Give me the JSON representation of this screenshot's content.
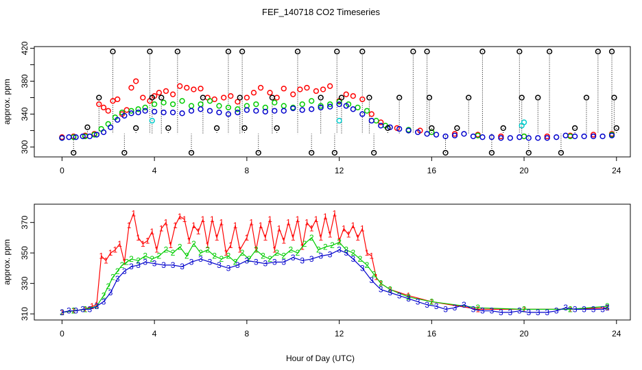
{
  "title": "FEF_140718  CO2 Timeseries",
  "xlabel": "Hour of Day (UTC)",
  "colors": {
    "s1": "#ff0000",
    "s2": "#00cc00",
    "s3": "#0000cc",
    "cyan": "#00cccc",
    "axis": "#000000"
  },
  "chart_data": [
    {
      "type": "scatter",
      "ylabel": "approx. ppm",
      "xlim": [
        -1.2,
        24.6
      ],
      "ylim": [
        288,
        422
      ],
      "xticks": [
        0,
        4,
        8,
        12,
        16,
        20,
        24
      ],
      "yticks": [
        300,
        340,
        380,
        420
      ],
      "y_minor_ticks": [
        320,
        360,
        400
      ],
      "grid": false,
      "series": [
        {
          "marker": "circle",
          "color": "#ff0000",
          "x": [
            0,
            0.5,
            1,
            1.4,
            1.6,
            1.8,
            2,
            2.2,
            2.4,
            2.6,
            2.8,
            3,
            3.2,
            3.5,
            3.8,
            4,
            4.2,
            4.5,
            4.8,
            5.1,
            5.4,
            5.7,
            6,
            6.3,
            6.6,
            7,
            7.3,
            7.6,
            8,
            8.3,
            8.6,
            9,
            9.3,
            9.6,
            10,
            10.3,
            10.6,
            11,
            11.3,
            11.6,
            12,
            12.3,
            12.6,
            13,
            13.4,
            13.8,
            14.5,
            15.5,
            16,
            17,
            18,
            19,
            20,
            21,
            22,
            23,
            23.8
          ],
          "y": [
            312,
            313,
            314,
            316,
            352,
            348,
            344,
            356,
            358,
            340,
            345,
            372,
            380,
            360,
            356,
            362,
            366,
            368,
            364,
            374,
            372,
            370,
            371,
            360,
            358,
            360,
            362,
            355,
            360,
            366,
            372,
            366,
            360,
            371,
            364,
            370,
            372,
            368,
            370,
            374,
            356,
            364,
            362,
            358,
            340,
            330,
            323,
            320,
            318,
            316,
            315,
            313,
            313,
            313,
            314,
            315,
            316
          ]
        },
        {
          "marker": "circle",
          "color": "#00cc00",
          "x": [
            0,
            0.5,
            1,
            1.4,
            1.7,
            2,
            2.3,
            2.6,
            3,
            3.3,
            3.6,
            4,
            4.4,
            4.8,
            5.2,
            5.6,
            6,
            6.4,
            6.8,
            7.2,
            7.6,
            8,
            8.4,
            8.8,
            9.2,
            9.6,
            10,
            10.4,
            10.8,
            11.2,
            11.6,
            12,
            12.4,
            12.8,
            13.2,
            13.6,
            14,
            15,
            16,
            18,
            20,
            22,
            23.8
          ],
          "y": [
            311,
            312,
            313,
            315,
            322,
            328,
            336,
            342,
            344,
            346,
            348,
            352,
            354,
            352,
            356,
            350,
            352,
            356,
            350,
            348,
            346,
            350,
            352,
            348,
            354,
            350,
            348,
            352,
            356,
            350,
            352,
            355,
            352,
            348,
            344,
            332,
            326,
            321,
            318,
            314,
            313,
            313,
            315
          ]
        },
        {
          "marker": "circle",
          "color": "#0000cc",
          "x": [
            0,
            0.3,
            0.6,
            0.9,
            1.2,
            1.5,
            1.8,
            2.1,
            2.4,
            2.7,
            3,
            3.3,
            3.6,
            4,
            4.4,
            4.8,
            5.2,
            5.6,
            6,
            6.4,
            6.8,
            7.2,
            7.6,
            8,
            8.4,
            8.8,
            9.2,
            9.6,
            10,
            10.4,
            10.8,
            11.2,
            11.6,
            12,
            12.3,
            12.6,
            13,
            13.4,
            13.8,
            14.2,
            14.6,
            15,
            15.4,
            15.8,
            16.2,
            16.6,
            17,
            17.4,
            17.8,
            18.2,
            18.6,
            19,
            19.4,
            19.8,
            20.2,
            20.6,
            21,
            21.4,
            21.8,
            22.2,
            22.6,
            23,
            23.4,
            23.8
          ],
          "y": [
            311,
            312,
            312,
            313,
            313,
            315,
            318,
            324,
            333,
            338,
            341,
            342,
            344,
            343,
            342,
            342,
            341,
            344,
            346,
            344,
            342,
            340,
            342,
            345,
            344,
            343,
            344,
            344,
            347,
            345,
            346,
            348,
            349,
            352,
            350,
            346,
            340,
            332,
            326,
            324,
            322,
            320,
            318,
            316,
            315,
            313,
            314,
            316,
            313,
            312,
            312,
            311,
            311,
            312,
            311,
            311,
            311,
            312,
            314,
            313,
            313,
            313,
            313,
            314
          ]
        },
        {
          "marker": "circle",
          "color": "#000000",
          "x": [
            0.5,
            1.1,
            1.6,
            2.7,
            2.2,
            3.2,
            3.8,
            3.9,
            4.3,
            4.6,
            5,
            5.6,
            6.1,
            6.7,
            7.2,
            7.7,
            7.8,
            7.9,
            8.5,
            9.1,
            9.3,
            10.2,
            10.8,
            11.2,
            11.8,
            11.9,
            12.1,
            13,
            13.3,
            13.5,
            14.1,
            14.6,
            15.2,
            15.8,
            15.9,
            16.0,
            16.6,
            17.1,
            17.6,
            18.2,
            18.6,
            19.1,
            19.8,
            19.9,
            20.2,
            20.6,
            21.1,
            21.6,
            22.2,
            22.7,
            23.2,
            23.8,
            23.9,
            24.0
          ],
          "y": [
            293,
            324,
            360,
            293,
            416,
            323,
            416,
            360,
            360,
            323,
            416,
            293,
            360,
            323,
            416,
            360,
            416,
            323,
            293,
            360,
            323,
            416,
            293,
            360,
            293,
            416,
            360,
            416,
            360,
            293,
            323,
            360,
            416,
            416,
            360,
            323,
            293,
            323,
            360,
            416,
            293,
            323,
            416,
            360,
            293,
            360,
            416,
            293,
            323,
            360,
            416,
            416,
            360,
            323
          ]
        },
        {
          "marker": "circle",
          "color": "#00cccc",
          "x": [
            3.9,
            12.0,
            19.9,
            20.0
          ],
          "y": [
            332,
            332,
            326,
            330
          ]
        }
      ]
    },
    {
      "type": "line",
      "ylabel": "approx. ppm",
      "xlim": [
        -1.2,
        24.6
      ],
      "ylim": [
        306,
        382
      ],
      "xticks": [
        0,
        4,
        8,
        12,
        16,
        20,
        24
      ],
      "yticks": [
        310,
        330,
        350,
        370
      ],
      "grid": false,
      "series": [
        {
          "marker": "1",
          "color": "#ff0000",
          "x": [
            0,
            0.5,
            1,
            1.3,
            1.5,
            1.7,
            1.9,
            2.1,
            2.3,
            2.5,
            2.7,
            2.9,
            3.1,
            3.3,
            3.5,
            3.7,
            3.9,
            4.1,
            4.3,
            4.5,
            4.7,
            4.9,
            5.1,
            5.3,
            5.5,
            5.7,
            5.9,
            6.1,
            6.3,
            6.5,
            6.7,
            6.9,
            7.1,
            7.3,
            7.5,
            7.7,
            8,
            8.2,
            8.4,
            8.6,
            8.8,
            9,
            9.2,
            9.4,
            9.6,
            9.8,
            10,
            10.2,
            10.4,
            10.6,
            10.8,
            11,
            11.2,
            11.4,
            11.6,
            11.8,
            12,
            12.2,
            12.4,
            12.6,
            12.8,
            13,
            13.2,
            13.4,
            13.6,
            13.8,
            14.2,
            15,
            16,
            18,
            20,
            22,
            23.6
          ],
          "y": [
            311,
            312,
            313,
            315,
            316,
            348,
            345,
            350,
            352,
            356,
            344,
            368,
            376,
            360,
            356,
            358,
            364,
            352,
            366,
            370,
            355,
            368,
            374,
            372,
            358,
            368,
            364,
            372,
            355,
            372,
            360,
            370,
            350,
            355,
            368,
            352,
            360,
            370,
            352,
            368,
            360,
            372,
            352,
            366,
            358,
            370,
            360,
            372,
            354,
            370,
            366,
            372,
            360,
            374,
            362,
            376,
            358,
            366,
            362,
            368,
            360,
            366,
            350,
            348,
            334,
            330,
            326,
            322,
            318,
            313,
            313,
            313,
            314
          ]
        },
        {
          "marker": "2",
          "color": "#00cc00",
          "x": [
            0,
            0.5,
            1,
            1.5,
            1.8,
            2.0,
            2.2,
            2.4,
            2.6,
            2.8,
            3.0,
            3.3,
            3.6,
            3.9,
            4.2,
            4.5,
            4.8,
            5.1,
            5.4,
            5.7,
            6.0,
            6.3,
            6.6,
            6.9,
            7.2,
            7.5,
            7.8,
            8.1,
            8.4,
            8.7,
            9.0,
            9.3,
            9.6,
            9.9,
            10.2,
            10.5,
            10.8,
            11.1,
            11.4,
            11.7,
            12.0,
            12.3,
            12.6,
            12.9,
            13.2,
            13.5,
            13.8,
            14.2,
            15,
            16,
            18,
            20,
            22,
            23.6
          ],
          "y": [
            311,
            312,
            313,
            315,
            322,
            328,
            334,
            338,
            342,
            344,
            346,
            345,
            348,
            346,
            348,
            352,
            350,
            354,
            348,
            356,
            350,
            352,
            348,
            346,
            348,
            344,
            350,
            346,
            352,
            348,
            346,
            350,
            348,
            352,
            350,
            356,
            360,
            352,
            354,
            355,
            357,
            352,
            350,
            346,
            342,
            336,
            330,
            326,
            321,
            318,
            314,
            313,
            313,
            315
          ]
        },
        {
          "marker": "3",
          "color": "#0000cc",
          "x": [
            0,
            0.3,
            0.6,
            0.9,
            1.2,
            1.5,
            1.8,
            2.1,
            2.4,
            2.7,
            3,
            3.3,
            3.6,
            4,
            4.4,
            4.8,
            5.2,
            5.6,
            6,
            6.4,
            6.8,
            7.2,
            7.6,
            8,
            8.4,
            8.8,
            9.2,
            9.6,
            10,
            10.4,
            10.8,
            11.2,
            11.6,
            12,
            12.3,
            12.6,
            13,
            13.4,
            13.8,
            14.2,
            14.6,
            15,
            15.4,
            15.8,
            16.2,
            16.6,
            17,
            17.4,
            17.8,
            18.2,
            18.6,
            19,
            19.4,
            19.8,
            20.2,
            20.6,
            21,
            21.4,
            21.8,
            22.2,
            22.6,
            23,
            23.4,
            23.6
          ],
          "y": [
            311,
            312,
            312,
            313,
            313,
            315,
            318,
            324,
            333,
            338,
            341,
            342,
            344,
            343,
            342,
            342,
            341,
            344,
            346,
            344,
            342,
            340,
            342,
            345,
            344,
            343,
            344,
            344,
            347,
            345,
            346,
            348,
            349,
            352,
            350,
            346,
            340,
            332,
            326,
            324,
            322,
            320,
            318,
            316,
            315,
            313,
            314,
            316,
            313,
            312,
            312,
            311,
            311,
            312,
            311,
            311,
            311,
            312,
            314,
            313,
            313,
            313,
            313,
            314
          ]
        }
      ]
    }
  ]
}
